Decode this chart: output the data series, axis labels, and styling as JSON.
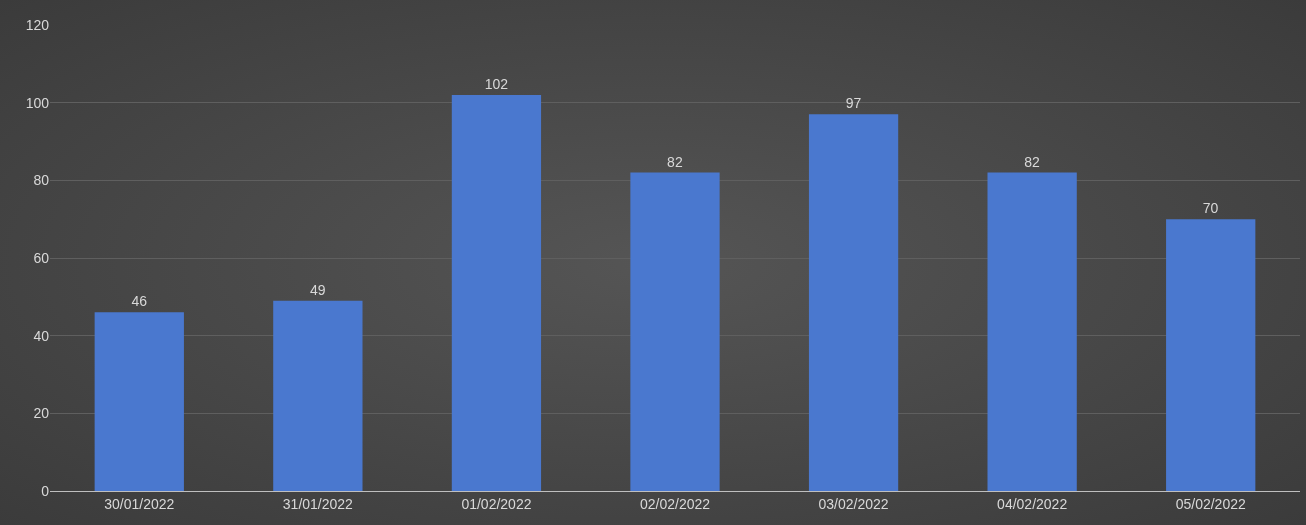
{
  "chart_data": {
    "type": "bar",
    "categories": [
      "30/01/2022",
      "31/01/2022",
      "01/02/2022",
      "02/02/2022",
      "03/02/2022",
      "04/02/2022",
      "05/02/2022"
    ],
    "values": [
      46,
      49,
      102,
      82,
      97,
      82,
      70
    ],
    "color": "#4a78cf",
    "ylim": [
      0,
      120
    ],
    "yticks": [
      0,
      20,
      40,
      60,
      80,
      100,
      120
    ],
    "grid": "y",
    "data_labels": true
  }
}
